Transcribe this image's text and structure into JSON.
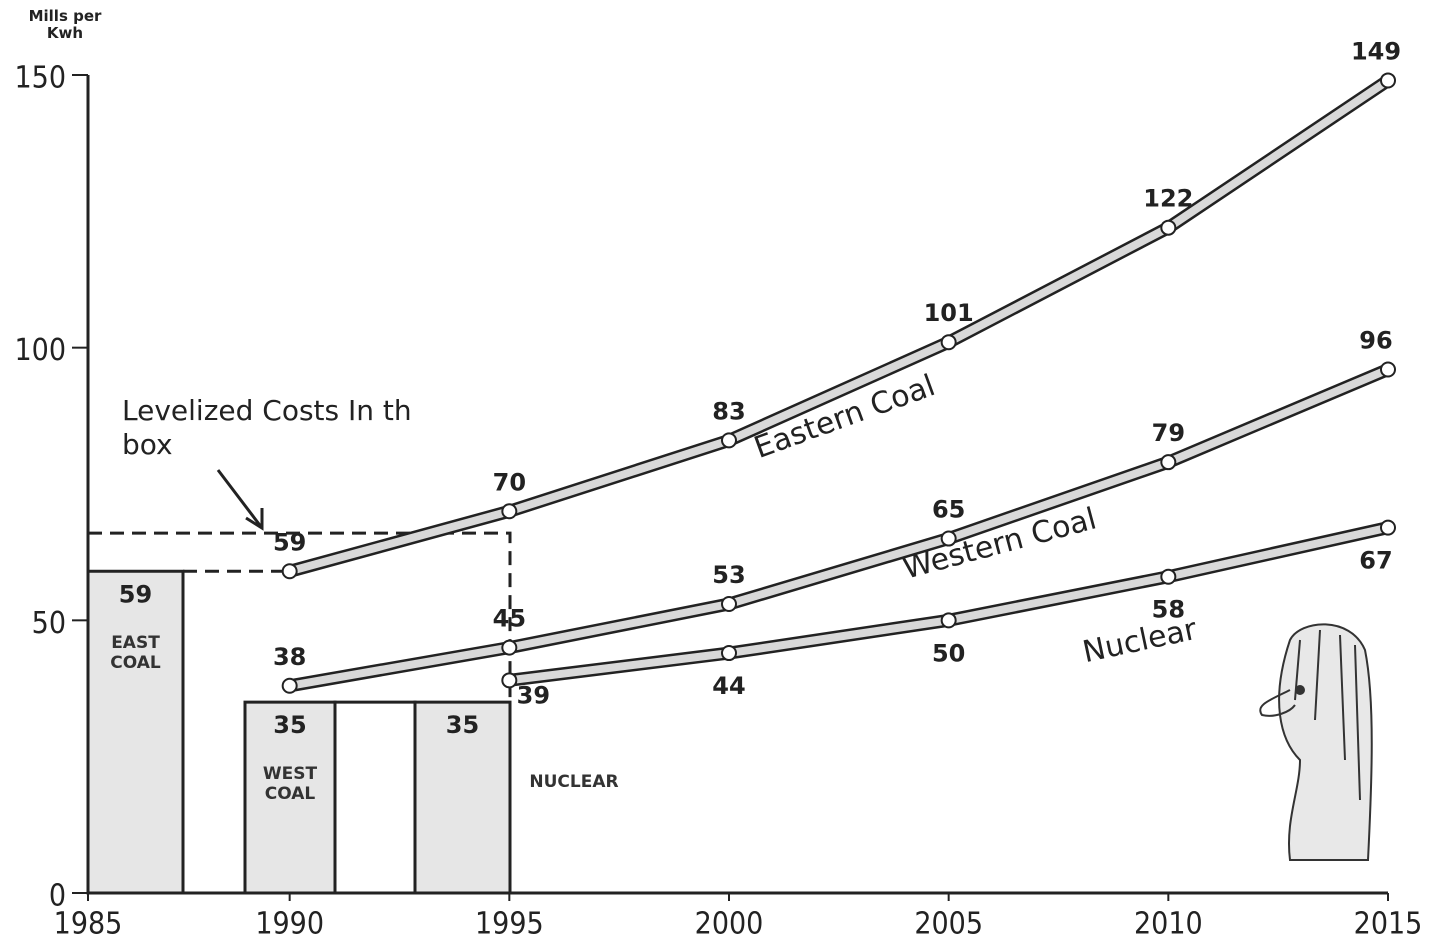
{
  "chart_data": {
    "type": "line",
    "y_label": "Mills per Kwh",
    "xlim": [
      1985,
      2015
    ],
    "xticks": [
      1985,
      1990,
      1995,
      2000,
      2005,
      2010,
      2015
    ],
    "ylim": [
      0,
      150
    ],
    "yticks": [
      0,
      50,
      100,
      150
    ],
    "annotation": "Levelized Costs In this box",
    "series": [
      {
        "name": "Eastern Coal",
        "color": "#d9d9d9",
        "x": [
          1990,
          1995,
          2000,
          2005,
          2010,
          2015
        ],
        "values": [
          59,
          70,
          83,
          101,
          122,
          149
        ]
      },
      {
        "name": "Western Coal",
        "color": "#d9d9d9",
        "x": [
          1990,
          1995,
          2000,
          2005,
          2010,
          2015
        ],
        "values": [
          38,
          45,
          53,
          65,
          79,
          96
        ]
      },
      {
        "name": "Nuclear",
        "color": "#d9d9d9",
        "x": [
          1995,
          2000,
          2005,
          2010,
          2015
        ],
        "values": [
          39,
          44,
          50,
          58,
          67
        ]
      }
    ],
    "bars": {
      "type": "bar",
      "categories": [
        "EAST COAL",
        "WEST COAL",
        "NUCLEAR"
      ],
      "values": [
        59,
        35,
        35
      ],
      "color": "#e6e6e6"
    }
  }
}
